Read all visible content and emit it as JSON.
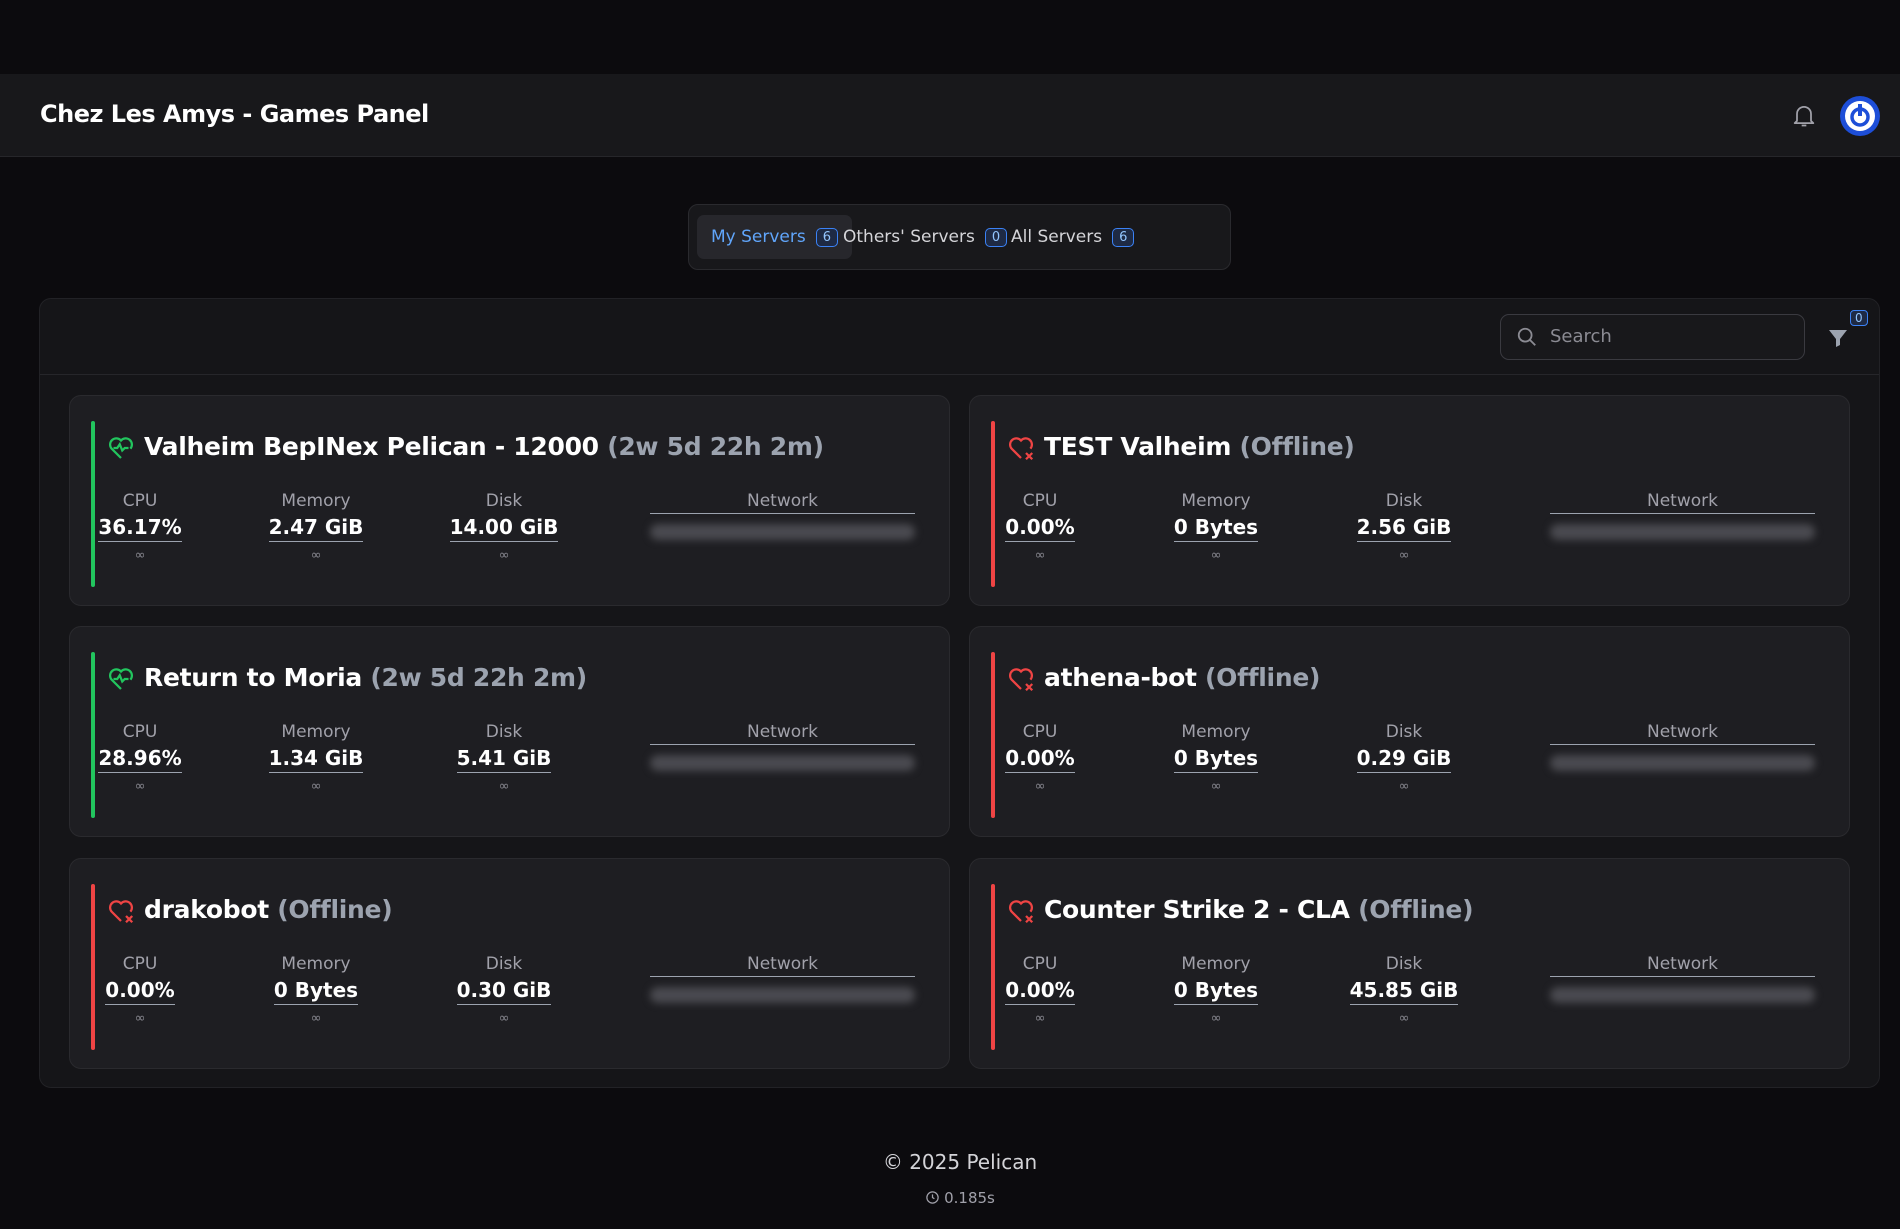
{
  "header": {
    "title": "Chez Les Amys - Games Panel"
  },
  "tabs": [
    {
      "label": "My Servers",
      "count": "6",
      "active": true
    },
    {
      "label": "Others' Servers",
      "count": "0",
      "active": false
    },
    {
      "label": "All Servers",
      "count": "6",
      "active": false
    }
  ],
  "search": {
    "placeholder": "Search"
  },
  "filter": {
    "count": "0"
  },
  "servers": [
    {
      "name": "Valheim BepINex Pelican - 12000",
      "status": "(2w 5d 22h 2m)",
      "online": true,
      "stats": [
        {
          "label": "CPU",
          "value": "36.17%",
          "limit": "∞"
        },
        {
          "label": "Memory",
          "value": "2.47 GiB",
          "limit": "∞"
        },
        {
          "label": "Disk",
          "value": "14.00 GiB",
          "limit": "∞"
        }
      ],
      "network_label": "Network"
    },
    {
      "name": "TEST Valheim",
      "status": "(Offline)",
      "online": false,
      "stats": [
        {
          "label": "CPU",
          "value": "0.00%",
          "limit": "∞"
        },
        {
          "label": "Memory",
          "value": "0 Bytes",
          "limit": "∞"
        },
        {
          "label": "Disk",
          "value": "2.56 GiB",
          "limit": "∞"
        }
      ],
      "network_label": "Network"
    },
    {
      "name": "Return to Moria",
      "status": "(2w 5d 22h 2m)",
      "online": true,
      "stats": [
        {
          "label": "CPU",
          "value": "28.96%",
          "limit": "∞"
        },
        {
          "label": "Memory",
          "value": "1.34 GiB",
          "limit": "∞"
        },
        {
          "label": "Disk",
          "value": "5.41 GiB",
          "limit": "∞"
        }
      ],
      "network_label": "Network"
    },
    {
      "name": "athena-bot",
      "status": "(Offline)",
      "online": false,
      "stats": [
        {
          "label": "CPU",
          "value": "0.00%",
          "limit": "∞"
        },
        {
          "label": "Memory",
          "value": "0 Bytes",
          "limit": "∞"
        },
        {
          "label": "Disk",
          "value": "0.29 GiB",
          "limit": "∞"
        }
      ],
      "network_label": "Network"
    },
    {
      "name": "drakobot",
      "status": "(Offline)",
      "online": false,
      "stats": [
        {
          "label": "CPU",
          "value": "0.00%",
          "limit": "∞"
        },
        {
          "label": "Memory",
          "value": "0 Bytes",
          "limit": "∞"
        },
        {
          "label": "Disk",
          "value": "0.30 GiB",
          "limit": "∞"
        }
      ],
      "network_label": "Network"
    },
    {
      "name": "Counter Strike 2 - CLA",
      "status": "(Offline)",
      "online": false,
      "stats": [
        {
          "label": "CPU",
          "value": "0.00%",
          "limit": "∞"
        },
        {
          "label": "Memory",
          "value": "0 Bytes",
          "limit": "∞"
        },
        {
          "label": "Disk",
          "value": "45.85 GiB",
          "limit": "∞"
        }
      ],
      "network_label": "Network"
    }
  ],
  "footer": {
    "copyright": "© 2025 Pelican",
    "time": "0.185s"
  }
}
